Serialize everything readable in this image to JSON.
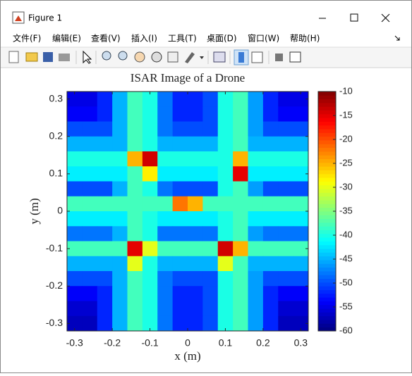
{
  "window": {
    "title": "Figure 1",
    "menu": [
      "文件(F)",
      "编辑(E)",
      "查看(V)",
      "插入(I)",
      "工具(T)",
      "桌面(D)",
      "窗口(W)",
      "帮助(H)"
    ]
  },
  "chart_data": {
    "type": "heatmap",
    "title": "ISAR Image of a Drone",
    "x_label": "x (m)",
    "y_label": "y (m)",
    "x": [
      -0.3,
      -0.26,
      -0.22,
      -0.18,
      -0.14,
      -0.1,
      -0.06,
      -0.02,
      0.02,
      0.06,
      0.1,
      0.14,
      0.18,
      0.22,
      0.26,
      0.3
    ],
    "y": [
      0.3,
      0.26,
      0.22,
      0.18,
      0.14,
      0.1,
      0.06,
      0.02,
      -0.02,
      -0.06,
      -0.1,
      -0.14,
      -0.18,
      -0.22,
      -0.26,
      -0.3
    ],
    "z": [
      [
        -55,
        -55,
        -52,
        -45,
        -38,
        -40,
        -48,
        -52,
        -52,
        -50,
        -40,
        -38,
        -46,
        -52,
        -55,
        -55
      ],
      [
        -54,
        -54,
        -52,
        -45,
        -38,
        -40,
        -48,
        -52,
        -52,
        -50,
        -40,
        -38,
        -46,
        -52,
        -54,
        -54
      ],
      [
        -50,
        -50,
        -50,
        -45,
        -38,
        -40,
        -48,
        -50,
        -50,
        -50,
        -40,
        -38,
        -46,
        -50,
        -50,
        -50
      ],
      [
        -45,
        -45,
        -45,
        -45,
        -38,
        -40,
        -45,
        -45,
        -45,
        -45,
        -40,
        -38,
        -45,
        -45,
        -45,
        -45
      ],
      [
        -40,
        -40,
        -40,
        -40,
        -25,
        -14,
        -40,
        -40,
        -40,
        -40,
        -40,
        -25,
        -40,
        -40,
        -40,
        -40
      ],
      [
        -42,
        -42,
        -42,
        -42,
        -38,
        -28,
        -42,
        -42,
        -42,
        -42,
        -40,
        -15,
        -42,
        -42,
        -42,
        -42
      ],
      [
        -50,
        -50,
        -50,
        -45,
        -38,
        -40,
        -48,
        -50,
        -50,
        -50,
        -40,
        -38,
        -46,
        -50,
        -50,
        -50
      ],
      [
        -38,
        -38,
        -38,
        -38,
        -38,
        -38,
        -38,
        -22,
        -25,
        -38,
        -38,
        -38,
        -38,
        -38,
        -38,
        -38
      ],
      [
        -42,
        -42,
        -42,
        -42,
        -38,
        -40,
        -42,
        -42,
        -42,
        -42,
        -40,
        -38,
        -42,
        -42,
        -42,
        -42
      ],
      [
        -48,
        -48,
        -48,
        -45,
        -38,
        -40,
        -48,
        -48,
        -48,
        -48,
        -40,
        -38,
        -46,
        -48,
        -48,
        -48
      ],
      [
        -38,
        -38,
        -38,
        -38,
        -15,
        -30,
        -38,
        -38,
        -38,
        -38,
        -14,
        -25,
        -38,
        -38,
        -38,
        -38
      ],
      [
        -45,
        -45,
        -45,
        -45,
        -30,
        -40,
        -45,
        -45,
        -45,
        -45,
        -30,
        -38,
        -45,
        -45,
        -45,
        -45
      ],
      [
        -50,
        -50,
        -50,
        -45,
        -38,
        -40,
        -48,
        -50,
        -50,
        -50,
        -40,
        -38,
        -46,
        -50,
        -50,
        -50
      ],
      [
        -54,
        -54,
        -52,
        -45,
        -38,
        -40,
        -48,
        -52,
        -52,
        -50,
        -40,
        -38,
        -46,
        -52,
        -54,
        -54
      ],
      [
        -56,
        -56,
        -52,
        -45,
        -38,
        -40,
        -48,
        -52,
        -52,
        -50,
        -40,
        -38,
        -46,
        -52,
        -56,
        -56
      ],
      [
        -57,
        -57,
        -52,
        -45,
        -38,
        -40,
        -48,
        -52,
        -52,
        -50,
        -40,
        -38,
        -46,
        -52,
        -57,
        -57
      ]
    ],
    "xlim": [
      -0.32,
      0.32
    ],
    "ylim": [
      -0.32,
      0.32
    ],
    "xticks": [
      -0.3,
      -0.2,
      -0.1,
      0,
      0.1,
      0.2,
      0.3
    ],
    "yticks": [
      0.3,
      0.2,
      0.1,
      0,
      -0.1,
      -0.2,
      -0.3
    ],
    "clim": [
      -60,
      -10
    ],
    "cticks": [
      -10,
      -15,
      -20,
      -25,
      -30,
      -35,
      -40,
      -45,
      -50,
      -55,
      -60
    ],
    "colormap": "jet"
  }
}
